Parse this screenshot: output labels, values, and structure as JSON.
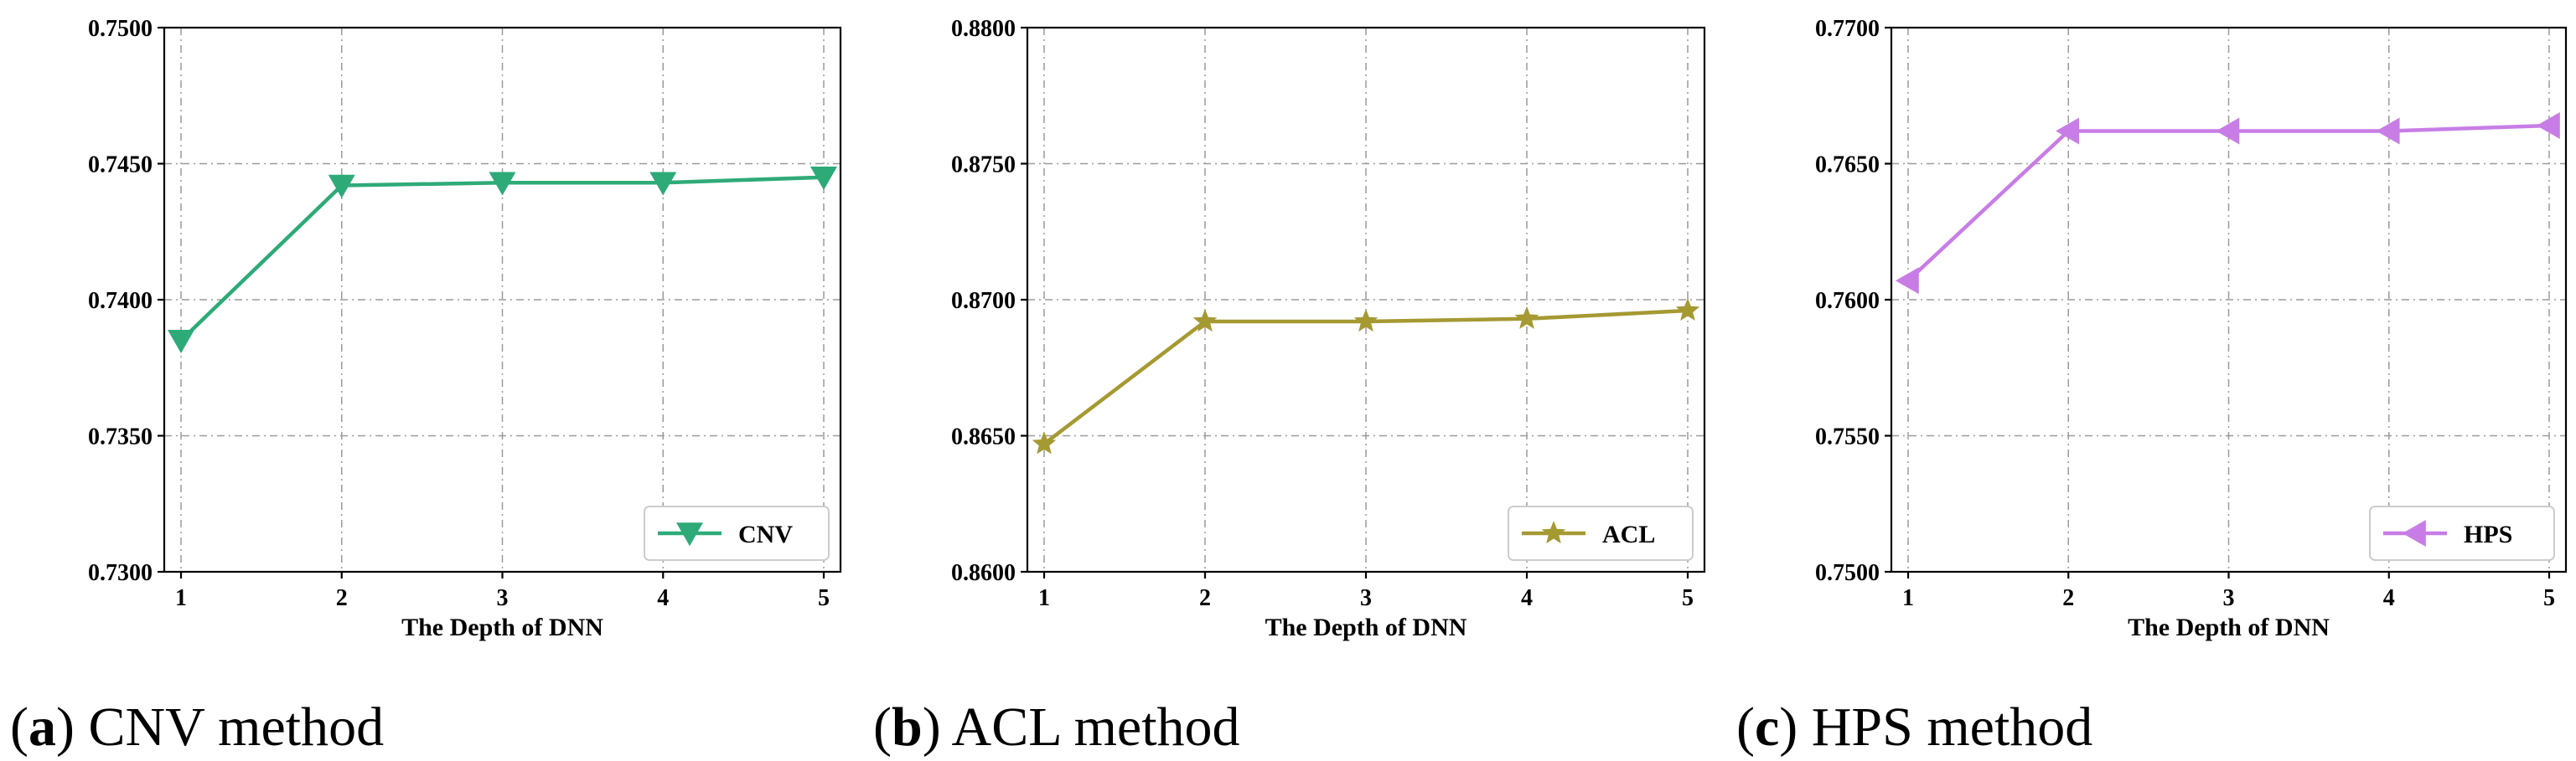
{
  "chart_data": [
    {
      "type": "line",
      "caption_letter": "a",
      "caption_text": "CNV method",
      "xlabel": "The Depth of DNN",
      "ylabel": "",
      "x": [
        1,
        2,
        3,
        4,
        5
      ],
      "x_ticks": [
        "1",
        "2",
        "3",
        "4",
        "5"
      ],
      "ylim": [
        0.73,
        0.75
      ],
      "y_ticks": [
        "0.7300",
        "0.7350",
        "0.7400",
        "0.7450",
        "0.7500"
      ],
      "grid": true,
      "legend_position": "lower right",
      "series": [
        {
          "name": "CNV",
          "values": [
            0.7385,
            0.7442,
            0.7443,
            0.7443,
            0.7445
          ],
          "color": "#2eaa78",
          "marker": "triangle-down"
        }
      ]
    },
    {
      "type": "line",
      "caption_letter": "b",
      "caption_text": "ACL method",
      "xlabel": "The Depth of DNN",
      "ylabel": "",
      "x": [
        1,
        2,
        3,
        4,
        5
      ],
      "x_ticks": [
        "1",
        "2",
        "3",
        "4",
        "5"
      ],
      "ylim": [
        0.86,
        0.88
      ],
      "y_ticks": [
        "0.8600",
        "0.8650",
        "0.8700",
        "0.8750",
        "0.8800"
      ],
      "grid": true,
      "legend_position": "lower right",
      "series": [
        {
          "name": "ACL",
          "values": [
            0.8647,
            0.8692,
            0.8692,
            0.8693,
            0.8696
          ],
          "color": "#a59932",
          "marker": "star"
        }
      ]
    },
    {
      "type": "line",
      "caption_letter": "c",
      "caption_text": "HPS method",
      "xlabel": "The Depth of DNN",
      "ylabel": "",
      "x": [
        1,
        2,
        3,
        4,
        5
      ],
      "x_ticks": [
        "1",
        "2",
        "3",
        "4",
        "5"
      ],
      "ylim": [
        0.75,
        0.77
      ],
      "y_ticks": [
        "0.7500",
        "0.7550",
        "0.7600",
        "0.7650",
        "0.7700"
      ],
      "grid": true,
      "legend_position": "lower right",
      "series": [
        {
          "name": "HPS",
          "values": [
            0.7607,
            0.7662,
            0.7662,
            0.7662,
            0.7664
          ],
          "color": "#c87de6",
          "marker": "triangle-left"
        }
      ]
    }
  ]
}
